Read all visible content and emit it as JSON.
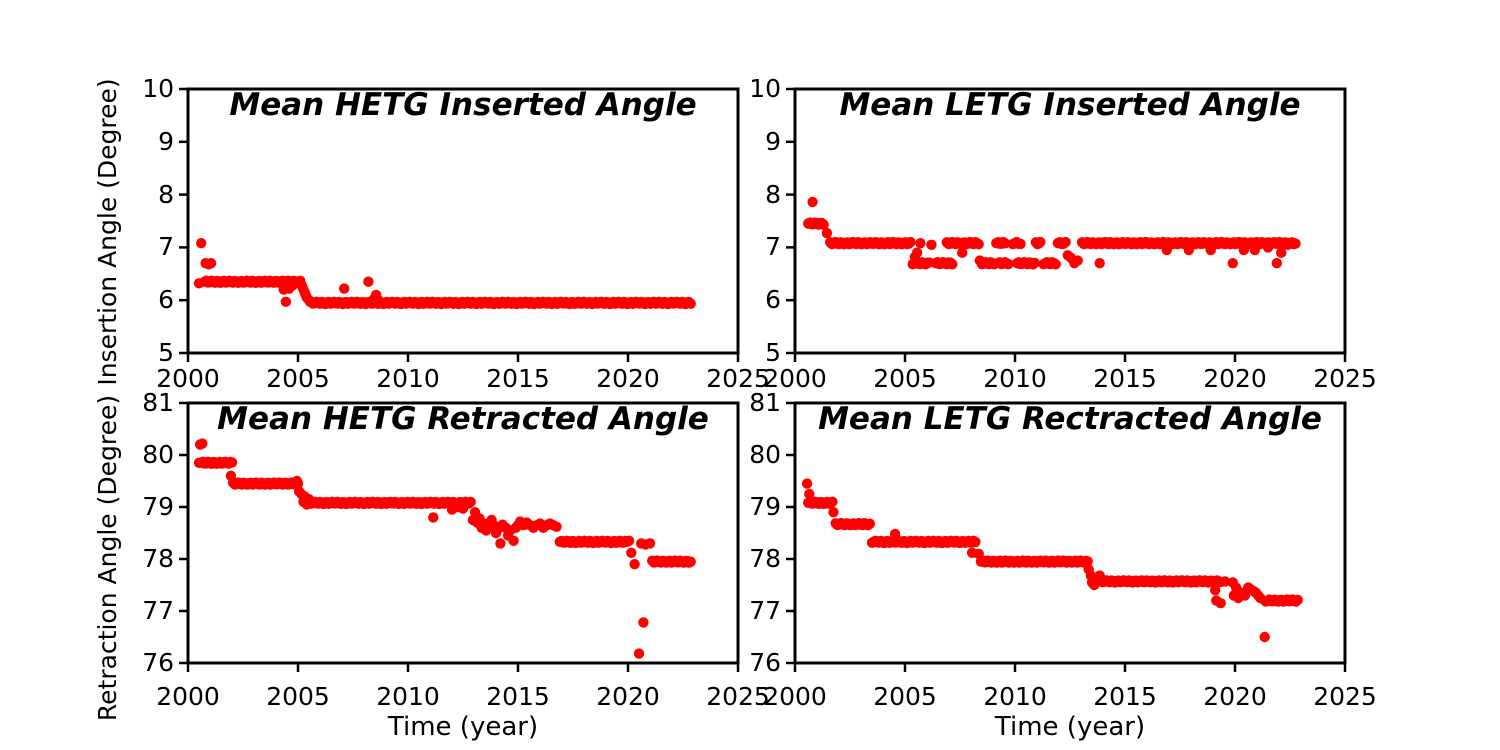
{
  "figure": {
    "background": "#ffffff",
    "axis_color": "#000000",
    "marker_color": "#ff0000"
  },
  "chart_data": [
    {
      "type": "scatter",
      "title": "Mean HETG Inserted Angle",
      "xlabel": "",
      "ylabel": "Insertion Angle (Degree)",
      "xlim": [
        2000,
        2025
      ],
      "ylim": [
        5,
        10
      ],
      "xticks": [
        2000,
        2005,
        2010,
        2015,
        2020,
        2025
      ],
      "yticks": [
        5,
        6,
        7,
        8,
        9,
        10
      ],
      "grid": false,
      "legend": "none",
      "steps": [
        [
          2000.75,
          2005.1,
          6.35
        ],
        [
          2005.6,
          2022.85,
          5.95
        ]
      ],
      "points": [
        [
          2000.5,
          6.32
        ],
        [
          2000.6,
          7.08
        ],
        [
          2000.8,
          6.7
        ],
        [
          2000.95,
          6.68
        ],
        [
          2001.05,
          6.7
        ],
        [
          2004.35,
          6.2
        ],
        [
          2004.45,
          5.97
        ],
        [
          2004.55,
          6.3
        ],
        [
          2004.6,
          6.22
        ],
        [
          2004.75,
          6.28
        ],
        [
          2005.15,
          6.3
        ],
        [
          2005.2,
          6.25
        ],
        [
          2005.25,
          6.2
        ],
        [
          2005.3,
          6.15
        ],
        [
          2005.35,
          6.1
        ],
        [
          2005.4,
          6.05
        ],
        [
          2005.5,
          6.0
        ],
        [
          2005.55,
          5.97
        ],
        [
          2007.1,
          6.22
        ],
        [
          2008.2,
          6.35
        ],
        [
          2008.45,
          6.02
        ],
        [
          2008.55,
          6.1
        ],
        [
          2008.65,
          6.0
        ]
      ]
    },
    {
      "type": "scatter",
      "title": "Mean LETG Inserted Angle",
      "xlabel": "",
      "ylabel": "Insertion Angle (Degree)",
      "xlim": [
        2000,
        2025
      ],
      "ylim": [
        5,
        10
      ],
      "xticks": [
        2000,
        2005,
        2010,
        2015,
        2020,
        2025
      ],
      "yticks": [
        5,
        6,
        7,
        8,
        9,
        10
      ],
      "grid": false,
      "legend": "none",
      "steps": [
        [
          2000.6,
          2001.3,
          7.45
        ],
        [
          2001.6,
          2005.25,
          7.08
        ],
        [
          2005.35,
          2006.1,
          6.7
        ],
        [
          2006.4,
          2007.15,
          6.7
        ],
        [
          2006.9,
          2008.35,
          7.08
        ],
        [
          2008.5,
          2009.05,
          6.7
        ],
        [
          2009.15,
          2009.55,
          7.08
        ],
        [
          2009.3,
          2009.7,
          6.7
        ],
        [
          2009.9,
          2010.25,
          7.08
        ],
        [
          2010.1,
          2010.9,
          6.7
        ],
        [
          2010.95,
          2011.15,
          7.08
        ],
        [
          2011.3,
          2011.85,
          6.7
        ],
        [
          2011.95,
          2012.3,
          7.08
        ],
        [
          2013.05,
          2022.75,
          7.08
        ]
      ],
      "points": [
        [
          2000.8,
          7.86
        ],
        [
          2001.45,
          7.27
        ],
        [
          2005.45,
          6.82
        ],
        [
          2005.55,
          6.9
        ],
        [
          2005.7,
          7.08
        ],
        [
          2006.2,
          7.05
        ],
        [
          2007.6,
          6.9
        ],
        [
          2008.4,
          6.75
        ],
        [
          2012.4,
          6.85
        ],
        [
          2012.55,
          6.8
        ],
        [
          2012.7,
          6.7
        ],
        [
          2012.85,
          6.75
        ],
        [
          2013.85,
          6.7
        ],
        [
          2016.9,
          6.95
        ],
        [
          2017.9,
          6.95
        ],
        [
          2018.9,
          6.95
        ],
        [
          2019.9,
          6.7
        ],
        [
          2020.4,
          6.95
        ],
        [
          2020.9,
          6.95
        ],
        [
          2021.5,
          7.0
        ],
        [
          2021.9,
          6.7
        ],
        [
          2022.1,
          6.9
        ],
        [
          2022.4,
          7.05
        ]
      ]
    },
    {
      "type": "scatter",
      "title": "Mean HETG Retracted Angle",
      "xlabel": "Time (year)",
      "ylabel": "Retraction Angle (Degree)",
      "xlim": [
        2000,
        2025
      ],
      "ylim": [
        76,
        81
      ],
      "xticks": [
        2000,
        2005,
        2010,
        2015,
        2020,
        2025
      ],
      "yticks": [
        76,
        77,
        78,
        79,
        80,
        81
      ],
      "grid": false,
      "legend": "none",
      "steps": [
        [
          2000.6,
          2002.0,
          79.85
        ],
        [
          2002.05,
          2004.95,
          79.45
        ],
        [
          2005.6,
          2012.85,
          79.08
        ],
        [
          2016.9,
          2019.95,
          78.33
        ],
        [
          2021.1,
          2022.85,
          77.95
        ]
      ],
      "points": [
        [
          2000.5,
          79.85
        ],
        [
          2000.55,
          80.2
        ],
        [
          2000.65,
          80.22
        ],
        [
          2001.95,
          79.6
        ],
        [
          2004.95,
          79.5
        ],
        [
          2005.0,
          79.45
        ],
        [
          2005.05,
          79.3
        ],
        [
          2005.15,
          79.25
        ],
        [
          2005.25,
          79.1
        ],
        [
          2005.3,
          79.2
        ],
        [
          2005.4,
          79.05
        ],
        [
          2005.5,
          79.15
        ],
        [
          2005.55,
          79.08
        ],
        [
          2011.15,
          78.8
        ],
        [
          2012.0,
          78.95
        ],
        [
          2012.3,
          79.0
        ],
        [
          2012.5,
          78.97
        ],
        [
          2012.95,
          78.75
        ],
        [
          2013.05,
          78.9
        ],
        [
          2013.15,
          78.7
        ],
        [
          2013.25,
          78.78
        ],
        [
          2013.35,
          78.6
        ],
        [
          2013.45,
          78.68
        ],
        [
          2013.55,
          78.55
        ],
        [
          2013.65,
          78.62
        ],
        [
          2013.8,
          78.75
        ],
        [
          2013.9,
          78.65
        ],
        [
          2014.0,
          78.5
        ],
        [
          2014.1,
          78.58
        ],
        [
          2014.2,
          78.3
        ],
        [
          2014.3,
          78.66
        ],
        [
          2014.45,
          78.6
        ],
        [
          2014.55,
          78.45
        ],
        [
          2014.65,
          78.55
        ],
        [
          2014.8,
          78.35
        ],
        [
          2014.9,
          78.6
        ],
        [
          2015.0,
          78.65
        ],
        [
          2015.1,
          78.72
        ],
        [
          2015.25,
          78.65
        ],
        [
          2015.4,
          78.7
        ],
        [
          2015.55,
          78.65
        ],
        [
          2015.7,
          78.6
        ],
        [
          2015.85,
          78.65
        ],
        [
          2016.0,
          78.68
        ],
        [
          2016.15,
          78.6
        ],
        [
          2016.3,
          78.65
        ],
        [
          2016.45,
          78.68
        ],
        [
          2016.6,
          78.65
        ],
        [
          2016.75,
          78.62
        ],
        [
          2020.05,
          78.35
        ],
        [
          2020.15,
          78.12
        ],
        [
          2020.3,
          77.9
        ],
        [
          2020.5,
          76.18
        ],
        [
          2020.6,
          78.3
        ],
        [
          2020.7,
          76.78
        ],
        [
          2020.8,
          78.28
        ],
        [
          2021.0,
          78.3
        ]
      ]
    },
    {
      "type": "scatter",
      "title": "Mean LETG Rectracted Angle",
      "xlabel": "Time (year)",
      "ylabel": "Retraction Angle (Degree)",
      "xlim": [
        2000,
        2025
      ],
      "ylim": [
        76,
        81
      ],
      "xticks": [
        2000,
        2005,
        2010,
        2015,
        2020,
        2025
      ],
      "yticks": [
        76,
        77,
        78,
        79,
        80,
        81
      ],
      "grid": false,
      "legend": "none",
      "steps": [
        [
          2000.6,
          2001.7,
          79.08
        ],
        [
          2001.85,
          2003.4,
          78.67
        ],
        [
          2003.5,
          2008.2,
          78.33
        ],
        [
          2008.45,
          2013.3,
          77.95
        ],
        [
          2013.9,
          2019.35,
          77.57
        ],
        [
          2021.4,
          2022.85,
          77.2
        ]
      ],
      "points": [
        [
          2000.55,
          79.45
        ],
        [
          2000.65,
          79.25
        ],
        [
          2001.75,
          78.9
        ],
        [
          2004.55,
          78.48
        ],
        [
          2008.05,
          78.12
        ],
        [
          2008.35,
          78.1
        ],
        [
          2013.35,
          77.8
        ],
        [
          2013.45,
          77.68
        ],
        [
          2013.5,
          77.55
        ],
        [
          2013.6,
          77.5
        ],
        [
          2013.7,
          77.62
        ],
        [
          2013.85,
          77.68
        ],
        [
          2019.1,
          77.4
        ],
        [
          2019.15,
          77.2
        ],
        [
          2019.35,
          77.15
        ],
        [
          2019.55,
          77.57
        ],
        [
          2019.9,
          77.55
        ],
        [
          2019.95,
          77.3
        ],
        [
          2020.05,
          77.45
        ],
        [
          2020.15,
          77.25
        ],
        [
          2020.3,
          77.35
        ],
        [
          2020.45,
          77.3
        ],
        [
          2020.6,
          77.45
        ],
        [
          2020.7,
          77.42
        ],
        [
          2020.85,
          77.38
        ],
        [
          2020.95,
          77.35
        ],
        [
          2021.05,
          77.3
        ],
        [
          2021.15,
          77.25
        ],
        [
          2021.35,
          76.5
        ]
      ]
    }
  ]
}
